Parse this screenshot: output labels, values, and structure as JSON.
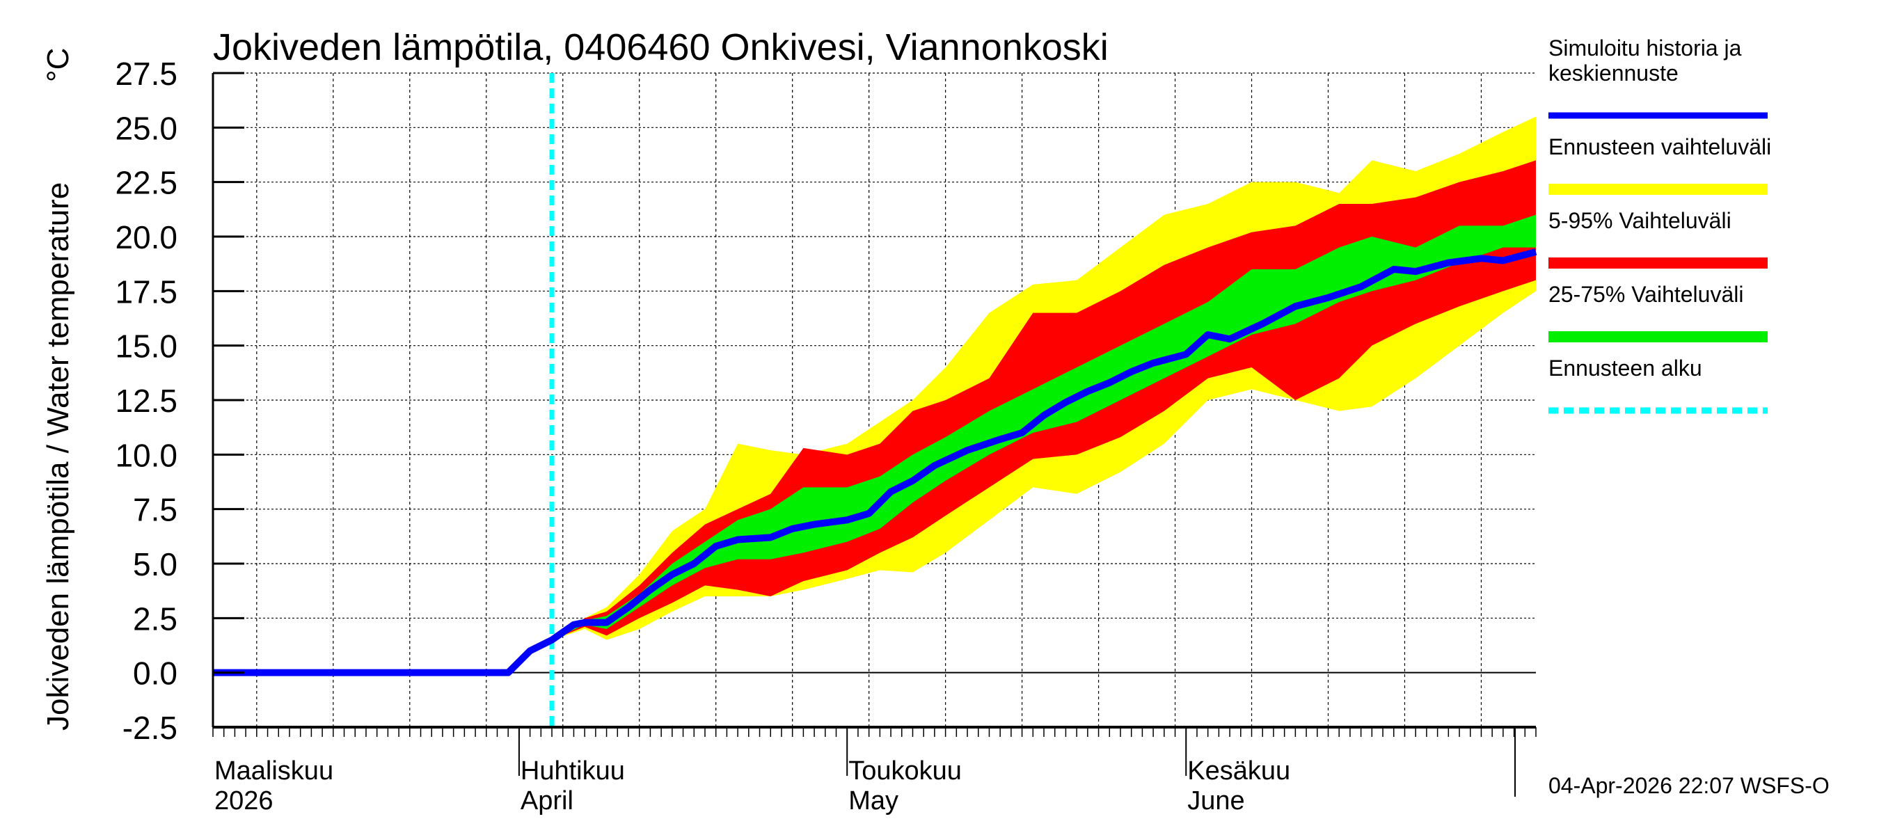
{
  "chart_data": {
    "type": "area",
    "title": "Jokiveden lämpötila, 0406460 Onkivesi, Viannonkoski",
    "ylabel": "Jokiveden lämpötila / Water temperature",
    "yunit": "°C",
    "ylim": [
      -2.5,
      27.5
    ],
    "yticks": [
      "-2.5",
      "0.0",
      "2.5",
      "5.0",
      "7.5",
      "10.0",
      "12.5",
      "15.0",
      "17.5",
      "20.0",
      "22.5",
      "25.0",
      "27.5"
    ],
    "xlim": [
      "2026-03-04",
      "2026-07-03"
    ],
    "grid": true,
    "legend_placement": "right",
    "month_labels": [
      {
        "date": "2026-03-04",
        "fi": "Maaliskuu",
        "en": "2026"
      },
      {
        "date": "2026-04-01",
        "fi": "Huhtikuu",
        "en": "April"
      },
      {
        "date": "2026-05-01",
        "fi": "Toukokuu",
        "en": "May"
      },
      {
        "date": "2026-06-01",
        "fi": "Kesäkuu",
        "en": "June"
      }
    ],
    "forecast_start": "2026-04-04",
    "legend": [
      {
        "label": "Simuloitu historia ja keskiennuste",
        "color": "#0000ff",
        "style": "line"
      },
      {
        "label": "Ennusteen vaihteluväli",
        "color": "#ffff00",
        "style": "band"
      },
      {
        "label": "5-95% Vaihteluväli",
        "color": "#ff0000",
        "style": "band"
      },
      {
        "label": "25-75% Vaihteluväli",
        "color": "#00ee00",
        "style": "band"
      },
      {
        "label": "Ennusteen alku",
        "color": "#00ffff",
        "style": "dashed"
      }
    ],
    "median": {
      "dates": [
        "2026-03-04",
        "2026-03-31",
        "2026-04-02",
        "2026-04-04",
        "2026-04-06",
        "2026-04-07",
        "2026-04-09",
        "2026-04-11",
        "2026-04-13",
        "2026-04-15",
        "2026-04-17",
        "2026-04-19",
        "2026-04-21",
        "2026-04-24",
        "2026-04-26",
        "2026-04-28",
        "2026-05-01",
        "2026-05-03",
        "2026-05-05",
        "2026-05-07",
        "2026-05-09",
        "2026-05-12",
        "2026-05-15",
        "2026-05-17",
        "2026-05-19",
        "2026-05-21",
        "2026-05-23",
        "2026-05-25",
        "2026-05-27",
        "2026-05-29",
        "2026-06-01",
        "2026-06-03",
        "2026-06-05",
        "2026-06-08",
        "2026-06-11",
        "2026-06-14",
        "2026-06-17",
        "2026-06-20",
        "2026-06-22",
        "2026-06-25",
        "2026-06-28",
        "2026-06-30",
        "2026-07-03"
      ],
      "values": [
        0,
        0,
        1.0,
        1.5,
        2.2,
        2.3,
        2.3,
        3.0,
        3.8,
        4.5,
        5.0,
        5.8,
        6.1,
        6.2,
        6.6,
        6.8,
        7.0,
        7.3,
        8.3,
        8.8,
        9.5,
        10.2,
        10.7,
        11.0,
        11.8,
        12.4,
        12.9,
        13.3,
        13.8,
        14.2,
        14.6,
        15.5,
        15.3,
        16.0,
        16.8,
        17.2,
        17.7,
        18.5,
        18.4,
        18.8,
        19.0,
        18.9,
        19.3
      ]
    },
    "bands": {
      "dates": [
        "2026-04-04",
        "2026-04-07",
        "2026-04-09",
        "2026-04-12",
        "2026-04-15",
        "2026-04-18",
        "2026-04-21",
        "2026-04-24",
        "2026-04-27",
        "2026-05-01",
        "2026-05-04",
        "2026-05-07",
        "2026-05-10",
        "2026-05-14",
        "2026-05-18",
        "2026-05-22",
        "2026-05-26",
        "2026-05-30",
        "2026-06-03",
        "2026-06-07",
        "2026-06-11",
        "2026-06-15",
        "2026-06-18",
        "2026-06-22",
        "2026-06-26",
        "2026-06-30",
        "2026-07-03"
      ],
      "range_low": [
        1.5,
        2.0,
        1.5,
        2.0,
        2.8,
        3.5,
        3.5,
        3.5,
        3.8,
        4.3,
        4.7,
        4.6,
        5.5,
        7.0,
        8.5,
        8.2,
        9.2,
        10.5,
        12.5,
        13.0,
        12.5,
        12.0,
        12.2,
        13.5,
        15.0,
        16.5,
        17.5
      ],
      "p5": [
        1.5,
        2.1,
        1.7,
        2.5,
        3.2,
        4.0,
        3.8,
        3.5,
        4.2,
        4.7,
        5.5,
        6.2,
        7.2,
        8.5,
        9.8,
        10.0,
        10.8,
        12.0,
        13.5,
        14.0,
        12.5,
        13.5,
        15.0,
        16.0,
        16.8,
        17.5,
        18.0
      ],
      "p25": [
        1.5,
        2.2,
        2.0,
        3.0,
        4.0,
        4.8,
        5.2,
        5.2,
        5.5,
        6.0,
        6.6,
        7.8,
        8.8,
        10.0,
        11.0,
        11.5,
        12.5,
        13.5,
        14.5,
        15.5,
        16.0,
        17.0,
        17.5,
        18.0,
        18.8,
        19.5,
        19.5
      ],
      "p75": [
        1.5,
        2.4,
        2.6,
        3.6,
        5.0,
        6.0,
        7.0,
        7.5,
        8.5,
        8.5,
        9.0,
        10.0,
        10.8,
        12.0,
        13.0,
        14.0,
        15.0,
        16.0,
        17.0,
        18.5,
        18.5,
        19.5,
        20.0,
        19.5,
        20.5,
        20.5,
        21.0
      ],
      "p95": [
        1.5,
        2.5,
        2.8,
        4.0,
        5.5,
        6.8,
        7.5,
        8.2,
        10.3,
        10.0,
        10.5,
        12.0,
        12.5,
        13.5,
        16.5,
        16.5,
        17.5,
        18.7,
        19.5,
        20.2,
        20.5,
        21.5,
        21.5,
        21.8,
        22.5,
        23.0,
        23.5
      ],
      "range_high": [
        1.5,
        2.5,
        3.0,
        4.5,
        6.5,
        7.5,
        10.5,
        10.2,
        10.0,
        10.5,
        11.5,
        12.5,
        14.0,
        16.5,
        17.8,
        18.0,
        19.5,
        21.0,
        21.5,
        22.5,
        22.5,
        22.0,
        23.5,
        23.0,
        23.8,
        24.8,
        25.5
      ]
    },
    "timestamp": "04-Apr-2026 22:07 WSFS-O"
  }
}
